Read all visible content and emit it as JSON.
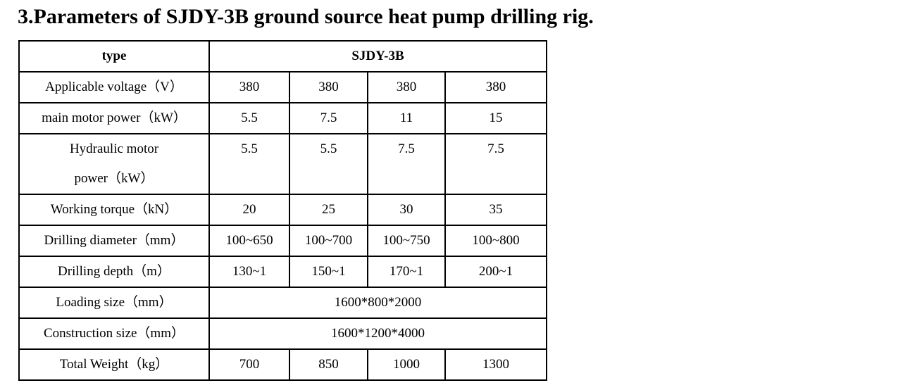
{
  "title": "3.Parameters of SJDY-3B ground source heat pump drilling rig.",
  "table": {
    "header": [
      "type",
      "SJDY-3B"
    ],
    "rows": [
      {
        "label": "Applicable voltage（V）",
        "values": [
          "380",
          "380",
          "380",
          "380"
        ]
      },
      {
        "label": "main motor power（kW）",
        "values": [
          "5.5",
          "7.5",
          "11",
          "15"
        ]
      },
      {
        "label": [
          "Hydraulic motor",
          "power（kW）"
        ],
        "values": [
          "5.5",
          "5.5",
          "7.5",
          "7.5"
        ]
      },
      {
        "label": "Working torque（kN）",
        "values": [
          "20",
          "25",
          "30",
          "35"
        ]
      },
      {
        "label": "Drilling diameter（mm）",
        "values": [
          "100~650",
          "100~700",
          "100~750",
          "100~800"
        ]
      },
      {
        "label": "Drilling depth（m）",
        "values": [
          "130~1",
          "150~1",
          "170~1",
          "200~1"
        ]
      },
      {
        "label": "Loading size（mm）",
        "values": [
          "1600*800*2000"
        ]
      },
      {
        "label": "Construction size（mm）",
        "values": [
          "1600*1200*4000"
        ]
      },
      {
        "label": "Total Weight（kg）",
        "values": [
          "700",
          "850",
          "1000",
          "1300"
        ]
      }
    ]
  }
}
